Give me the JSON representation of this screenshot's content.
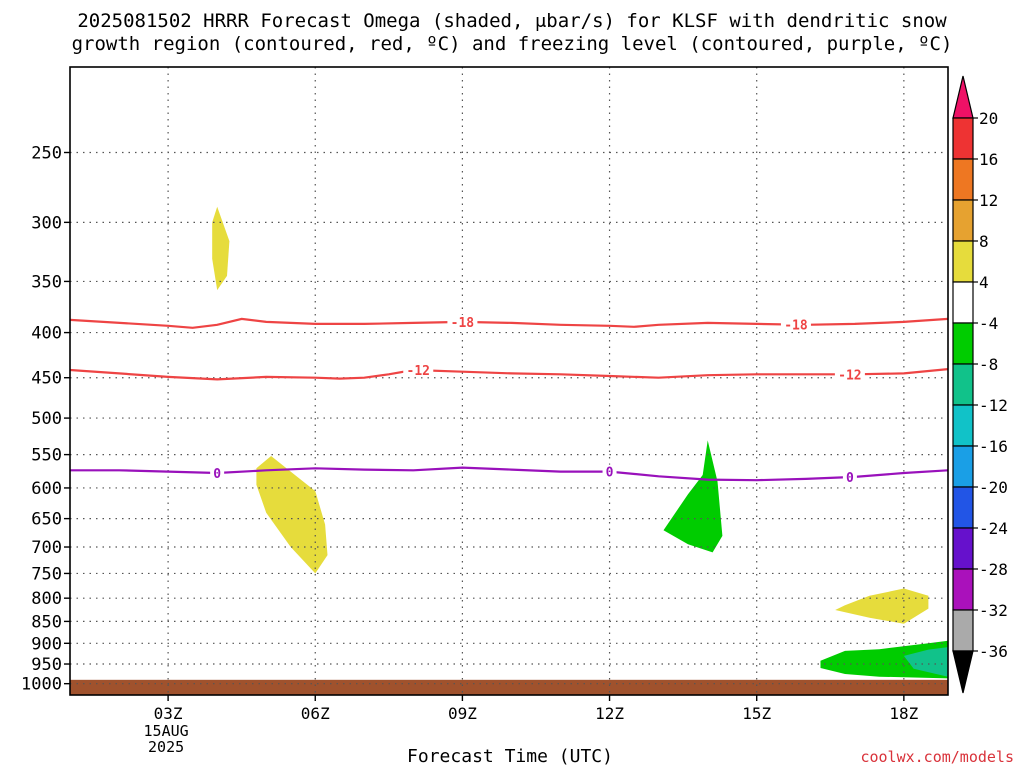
{
  "title_line1": "2025081502 HRRR Forecast Omega (shaded, μbar/s) for KLSF with dendritic snow",
  "title_line2": "growth region (contoured, red, ºC) and freezing level (contoured, purple, ºC)",
  "credit": "coolwx.com/models",
  "chart_data": {
    "type": "time-height cross section",
    "title": "2025081502 HRRR Forecast Omega (shaded, μbar/s) for KLSF with dendritic snow growth region (contoured, red, ºC) and freezing level (contoured, purple, ºC)",
    "xlabel": "Forecast Time (UTC)",
    "ylabel": "",
    "x_range_hours": [
      1.0,
      18.9
    ],
    "y_range_hPa": [
      200,
      1030
    ],
    "y_scale": "log-pressure",
    "grid": true,
    "x_ticks": [
      {
        "hour": 3,
        "label": "03Z",
        "sub": [
          "15AUG",
          "2025"
        ]
      },
      {
        "hour": 6,
        "label": "06Z"
      },
      {
        "hour": 9,
        "label": "09Z"
      },
      {
        "hour": 12,
        "label": "12Z"
      },
      {
        "hour": 15,
        "label": "15Z"
      },
      {
        "hour": 18,
        "label": "18Z"
      }
    ],
    "y_ticks": [
      250,
      300,
      350,
      400,
      450,
      500,
      550,
      600,
      650,
      700,
      750,
      800,
      850,
      900,
      950,
      1000
    ],
    "contours": [
      {
        "name": "-18 isotherm",
        "value": -18,
        "color": "#ee4444",
        "x_hours": [
          1.0,
          3.0,
          3.5,
          4.0,
          4.5,
          5.0,
          6.0,
          7.0,
          8.0,
          9.0,
          10.0,
          11.0,
          12.0,
          12.5,
          13.0,
          14.0,
          15.0,
          16.0,
          17.0,
          18.0,
          18.9
        ],
        "p_hPa": [
          387,
          393,
          395,
          392,
          386,
          389,
          391,
          391,
          390,
          389,
          390,
          392,
          393,
          394,
          392,
          390,
          391,
          392,
          391,
          389,
          386
        ],
        "labels": [
          {
            "hour": 9.0,
            "text": "-18"
          },
          {
            "hour": 15.8,
            "text": "-18"
          }
        ]
      },
      {
        "name": "-12 isotherm",
        "value": -12,
        "color": "#ee4444",
        "x_hours": [
          1.0,
          2.0,
          3.0,
          4.0,
          5.0,
          6.0,
          6.5,
          7.0,
          7.5,
          8.0,
          9.0,
          10.0,
          11.0,
          12.0,
          13.0,
          14.0,
          15.0,
          16.0,
          17.0,
          18.0,
          18.9
        ],
        "p_hPa": [
          441,
          445,
          449,
          452,
          449,
          450,
          451,
          450,
          446,
          441,
          443,
          445,
          446,
          448,
          450,
          447,
          446,
          446,
          446,
          445,
          440
        ],
        "labels": [
          {
            "hour": 8.1,
            "text": "-12"
          },
          {
            "hour": 16.9,
            "text": "-12"
          }
        ]
      },
      {
        "name": "0 isotherm (freezing level)",
        "value": 0,
        "color": "#9911bb",
        "x_hours": [
          1.0,
          2.0,
          3.0,
          4.0,
          5.0,
          6.0,
          7.0,
          8.0,
          9.0,
          10.0,
          11.0,
          12.0,
          13.0,
          14.0,
          15.0,
          16.0,
          17.0,
          18.0,
          18.9
        ],
        "p_hPa": [
          573,
          573,
          575,
          577,
          573,
          570,
          572,
          573,
          569,
          572,
          575,
          575,
          582,
          587,
          588,
          586,
          583,
          577,
          573
        ],
        "labels": [
          {
            "hour": 4.0,
            "text": "0"
          },
          {
            "hour": 12.0,
            "text": "0"
          },
          {
            "hour": 16.9,
            "text": "0"
          }
        ]
      }
    ],
    "shaded_regions": [
      {
        "category": "4 to 8",
        "color": "#e6dc3c",
        "points": [
          [
            4.0,
            288
          ],
          [
            4.25,
            315
          ],
          [
            4.2,
            345
          ],
          [
            4.0,
            358
          ],
          [
            3.9,
            330
          ],
          [
            3.9,
            300
          ]
        ]
      },
      {
        "category": "4 to 8",
        "color": "#e6dc3c",
        "points": [
          [
            5.1,
            552
          ],
          [
            5.5,
            575
          ],
          [
            6.0,
            605
          ],
          [
            6.2,
            660
          ],
          [
            6.25,
            715
          ],
          [
            6.0,
            750
          ],
          [
            5.5,
            700
          ],
          [
            5.0,
            640
          ],
          [
            4.8,
            595
          ],
          [
            4.8,
            570
          ]
        ]
      },
      {
        "category": "4 to 8",
        "color": "#e6dc3c",
        "points": [
          [
            16.8,
            815
          ],
          [
            17.3,
            795
          ],
          [
            18.0,
            780
          ],
          [
            18.5,
            795
          ],
          [
            18.5,
            822
          ],
          [
            18.0,
            855
          ],
          [
            17.3,
            842
          ],
          [
            16.6,
            825
          ]
        ]
      },
      {
        "category": "-8 to -4",
        "color": "#00cc00",
        "points": [
          [
            14.0,
            530
          ],
          [
            14.2,
            590
          ],
          [
            14.3,
            680
          ],
          [
            14.1,
            710
          ],
          [
            13.6,
            695
          ],
          [
            13.1,
            670
          ],
          [
            13.6,
            610
          ],
          [
            13.9,
            580
          ]
        ]
      },
      {
        "category": "-8 to -4",
        "color": "#00cc00",
        "points": [
          [
            16.3,
            942
          ],
          [
            16.8,
            918
          ],
          [
            17.5,
            914
          ],
          [
            18.5,
            900
          ],
          [
            19.5,
            885
          ],
          [
            20.0,
            880
          ],
          [
            20.0,
            990
          ],
          [
            18.5,
            985
          ],
          [
            17.5,
            982
          ],
          [
            16.8,
            975
          ],
          [
            16.3,
            960
          ]
        ]
      },
      {
        "category": "-12 to -8",
        "color": "#11c28a",
        "points": [
          [
            18.0,
            930
          ],
          [
            18.5,
            915
          ],
          [
            19.5,
            900
          ],
          [
            20.0,
            897
          ],
          [
            20.0,
            990
          ],
          [
            19.0,
            985
          ],
          [
            18.2,
            962
          ]
        ]
      },
      {
        "category": "-16 to -12",
        "color": "#11c2c8",
        "points": [
          [
            19.0,
            945
          ],
          [
            19.5,
            932
          ],
          [
            20.0,
            930
          ],
          [
            20.0,
            982
          ],
          [
            19.3,
            978
          ],
          [
            19.0,
            962
          ]
        ]
      }
    ],
    "ground_hPa": 990,
    "ground_color": "#a0522d",
    "colorbar": {
      "levels": [
        20,
        16,
        12,
        8,
        4,
        -4,
        -8,
        -12,
        -16,
        -20,
        -24,
        -28,
        -32,
        -36
      ],
      "colors": [
        "#ee1166",
        "#ee3333",
        "#ee7722",
        "#e6a230",
        "#e6dc3c",
        "#ffffff",
        "#00cc00",
        "#11c28a",
        "#11c2c8",
        "#1a9fe6",
        "#2255e6",
        "#6611cc",
        "#aa11bb",
        "#aaaaaa",
        "#000000"
      ]
    }
  }
}
